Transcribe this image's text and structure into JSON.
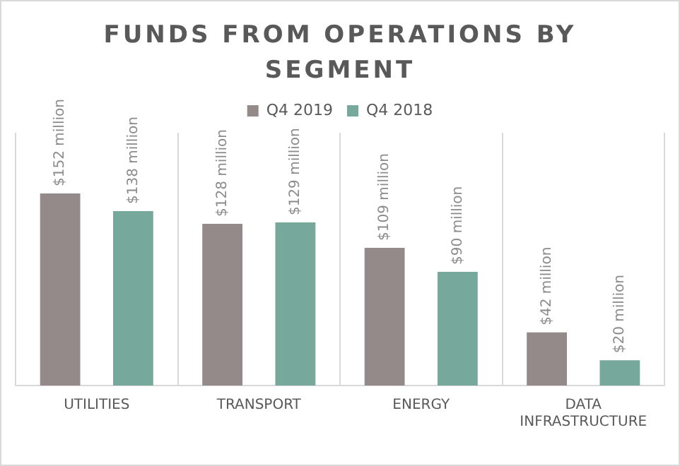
{
  "chart_data": {
    "type": "bar",
    "title": "FUNDS FROM OPERATIONS BY SEGMENT",
    "categories": [
      "UTILITIES",
      "TRANSPORT",
      "ENERGY",
      "DATA INFRASTRUCTURE"
    ],
    "series": [
      {
        "name": "Q4 2019",
        "color": "#948a89",
        "values": [
          152,
          128,
          109,
          42
        ],
        "value_labels": [
          "$152 million",
          "$128 million",
          "$109 million",
          "$42 million"
        ]
      },
      {
        "name": "Q4 2018",
        "color": "#76a89b",
        "values": [
          138,
          129,
          90,
          20
        ],
        "value_labels": [
          "$138 million",
          "$129 million",
          "$90 million",
          "$20 million"
        ]
      }
    ],
    "grid": "x",
    "legend": "top",
    "tick_labels": "x"
  }
}
